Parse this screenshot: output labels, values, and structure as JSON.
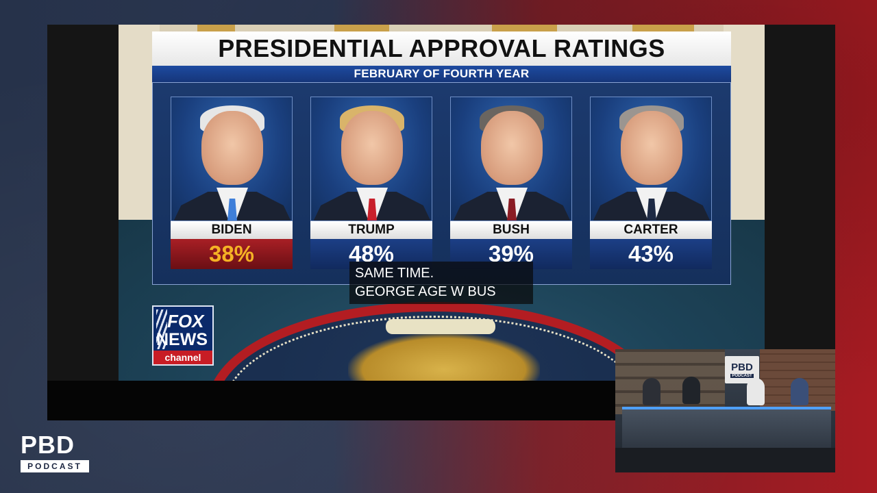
{
  "graphic": {
    "title": "PRESIDENTIAL APPROVAL RATINGS",
    "subtitle": "FEBRUARY OF FOURTH YEAR",
    "presidents": [
      {
        "name": "BIDEN",
        "rating": "38%",
        "highlighted": true,
        "hair": "#e6e6e6",
        "tie": "#3f7fd9"
      },
      {
        "name": "TRUMP",
        "rating": "48%",
        "highlighted": false,
        "hair": "#d9b46a",
        "tie": "#c8202b"
      },
      {
        "name": "BUSH",
        "rating": "39%",
        "highlighted": false,
        "hair": "#6a6560",
        "tie": "#8a1c24"
      },
      {
        "name": "CARTER",
        "rating": "43%",
        "highlighted": false,
        "hair": "#9b9590",
        "tie": "#1e2a44"
      }
    ]
  },
  "captions": {
    "line1": "SAME TIME.",
    "line2": "GEORGE AGE W BUS"
  },
  "network_logo": {
    "fox": "FOX",
    "news": "NEWS",
    "channel": "channel"
  },
  "pip": {
    "logo": "PBD",
    "logo_sub": "PODCAST"
  },
  "brand": {
    "main": "PBD",
    "sub": "PODCAST"
  },
  "colors": {
    "highlight_red": "#a81f25",
    "highlight_gold": "#f5b225",
    "panel_blue": "#1c3a6e",
    "fox_red": "#c81d25"
  }
}
